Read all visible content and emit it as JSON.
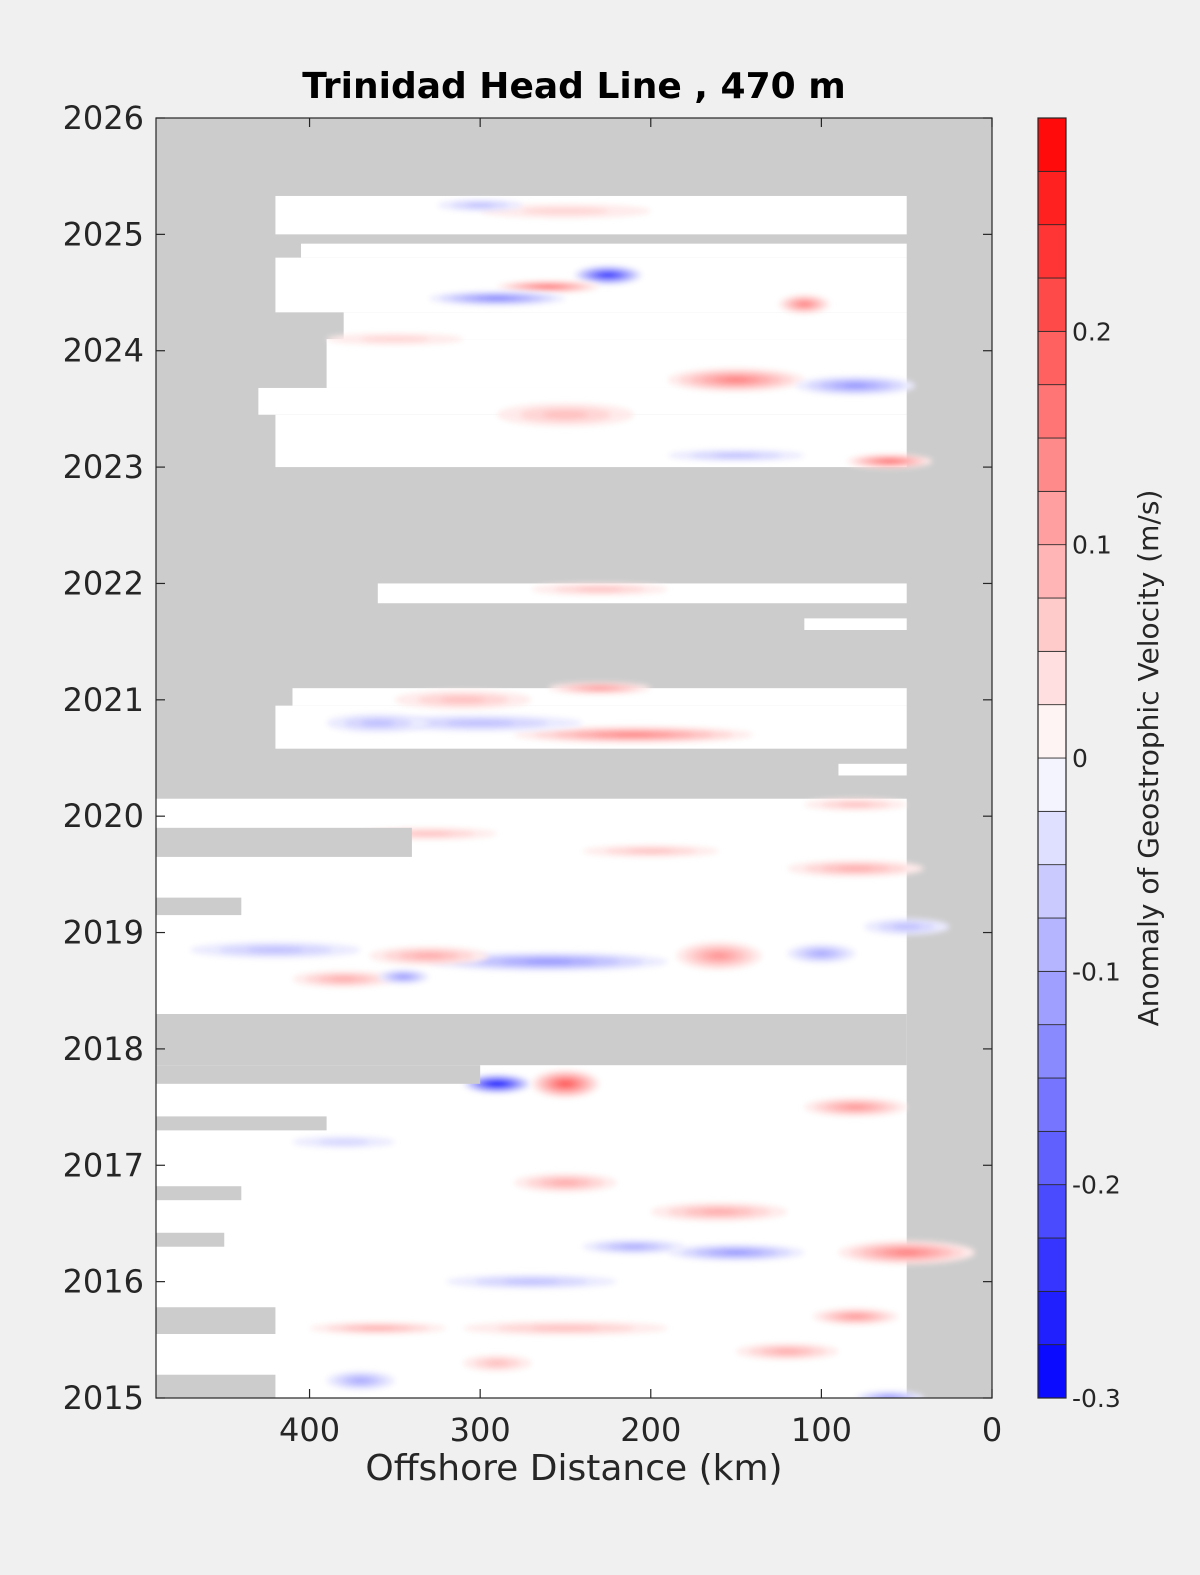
{
  "chart_data": {
    "type": "heatmap",
    "title": "Trinidad Head Line , 470 m",
    "xlabel": "Offshore Distance (km)",
    "ylabel": "",
    "x_reversed": true,
    "xlim": [
      490,
      0
    ],
    "ylim": [
      2015,
      2026
    ],
    "xticks": [
      400,
      300,
      200,
      100,
      0
    ],
    "yticks": [
      2015,
      2016,
      2017,
      2018,
      2019,
      2020,
      2021,
      2022,
      2023,
      2024,
      2025,
      2026
    ],
    "no_data_color": "#cccccc",
    "colorbar": {
      "label": "Anomaly of Geostrophic Velocity (m/s)",
      "range": [
        -0.3,
        0.3
      ],
      "ticks": [
        -0.3,
        -0.2,
        -0.1,
        0,
        0.1,
        0.2
      ],
      "tick_labels": [
        "-0.3",
        "-0.2",
        "-0.1",
        "0",
        "0.1",
        "0.2"
      ],
      "levels": [
        -0.3,
        -0.275,
        -0.25,
        -0.225,
        -0.2,
        -0.175,
        -0.15,
        -0.125,
        -0.1,
        -0.075,
        -0.05,
        -0.025,
        0,
        0.025,
        0.05,
        0.075,
        0.1,
        0.125,
        0.15,
        0.175,
        0.2,
        0.225,
        0.25,
        0.275,
        0.3
      ],
      "min_color": "#0000ff",
      "zero_color": "#ffffff",
      "max_color": "#ff0000"
    },
    "data_rows": [
      {
        "y0": 2025.0,
        "y1": 2025.33,
        "xmax": 420
      },
      {
        "y0": 2024.8,
        "y1": 2024.92,
        "xmax": 405
      },
      {
        "y0": 2024.33,
        "y1": 2024.8,
        "xmax": 420
      },
      {
        "y0": 2024.1,
        "y1": 2024.33,
        "xmax": 380
      },
      {
        "y0": 2023.68,
        "y1": 2024.1,
        "xmax": 390
      },
      {
        "y0": 2023.45,
        "y1": 2023.68,
        "xmax": 430
      },
      {
        "y0": 2023.0,
        "y1": 2023.45,
        "xmax": 420
      },
      {
        "y0": 2021.83,
        "y1": 2022.0,
        "xmax": 360
      },
      {
        "y0": 2021.6,
        "y1": 2021.7,
        "xmax": 110
      },
      {
        "y0": 2020.95,
        "y1": 2021.1,
        "xmax": 410
      },
      {
        "y0": 2020.58,
        "y1": 2020.95,
        "xmax": 420
      },
      {
        "y0": 2020.35,
        "y1": 2020.45,
        "xmax": 90
      },
      {
        "y0": 2015.0,
        "y1": 2020.15,
        "xmax": 490
      }
    ],
    "no_data_rows": [
      {
        "y0": 2019.65,
        "y1": 2019.9,
        "xmax": 490,
        "xmin": 340
      },
      {
        "y0": 2019.15,
        "y1": 2019.3,
        "xmax": 490,
        "xmin": 440
      },
      {
        "y0": 2017.86,
        "y1": 2018.3,
        "xmax": 490,
        "xmin": 50
      },
      {
        "y0": 2017.7,
        "y1": 2017.86,
        "xmax": 490,
        "xmin": 300
      },
      {
        "y0": 2017.3,
        "y1": 2017.42,
        "xmax": 490,
        "xmin": 390
      },
      {
        "y0": 2016.7,
        "y1": 2016.82,
        "xmax": 490,
        "xmin": 440
      },
      {
        "y0": 2016.3,
        "y1": 2016.42,
        "xmax": 490,
        "xmin": 450
      },
      {
        "y0": 2015.55,
        "y1": 2015.78,
        "xmax": 490,
        "xmin": 420
      },
      {
        "y0": 2015.0,
        "y1": 2015.2,
        "xmax": 490,
        "xmin": 420
      }
    ],
    "data_xmin": 50,
    "features": [
      {
        "x": 225,
        "y": 2024.65,
        "value": -0.26,
        "rx": 20,
        "ry": 0.08
      },
      {
        "x": 260,
        "y": 2024.55,
        "value": 0.18,
        "rx": 30,
        "ry": 0.05
      },
      {
        "x": 290,
        "y": 2024.45,
        "value": -0.14,
        "rx": 40,
        "ry": 0.06
      },
      {
        "x": 110,
        "y": 2024.4,
        "value": 0.15,
        "rx": 15,
        "ry": 0.08
      },
      {
        "x": 150,
        "y": 2023.75,
        "value": 0.14,
        "rx": 40,
        "ry": 0.1
      },
      {
        "x": 80,
        "y": 2023.7,
        "value": -0.12,
        "rx": 35,
        "ry": 0.08
      },
      {
        "x": 250,
        "y": 2023.45,
        "value": 0.08,
        "rx": 40,
        "ry": 0.1
      },
      {
        "x": 150,
        "y": 2023.1,
        "value": -0.08,
        "rx": 40,
        "ry": 0.05
      },
      {
        "x": 60,
        "y": 2023.05,
        "value": 0.18,
        "rx": 25,
        "ry": 0.06
      },
      {
        "x": 230,
        "y": 2021.1,
        "value": 0.12,
        "rx": 30,
        "ry": 0.05
      },
      {
        "x": 210,
        "y": 2020.7,
        "value": 0.14,
        "rx": 70,
        "ry": 0.07
      },
      {
        "x": 300,
        "y": 2020.8,
        "value": -0.08,
        "rx": 60,
        "ry": 0.07
      },
      {
        "x": 310,
        "y": 2021.0,
        "value": 0.08,
        "rx": 40,
        "ry": 0.08
      },
      {
        "x": 360,
        "y": 2020.8,
        "value": -0.08,
        "rx": 30,
        "ry": 0.08
      },
      {
        "x": 230,
        "y": 2021.95,
        "value": 0.08,
        "rx": 40,
        "ry": 0.05
      },
      {
        "x": 260,
        "y": 2018.75,
        "value": -0.12,
        "rx": 70,
        "ry": 0.08
      },
      {
        "x": 380,
        "y": 2018.6,
        "value": 0.1,
        "rx": 30,
        "ry": 0.07
      },
      {
        "x": 330,
        "y": 2018.8,
        "value": 0.09,
        "rx": 35,
        "ry": 0.08
      },
      {
        "x": 345,
        "y": 2018.62,
        "value": -0.12,
        "rx": 15,
        "ry": 0.06
      },
      {
        "x": 160,
        "y": 2018.8,
        "value": 0.12,
        "rx": 25,
        "ry": 0.12
      },
      {
        "x": 100,
        "y": 2018.82,
        "value": -0.09,
        "rx": 20,
        "ry": 0.08
      },
      {
        "x": 80,
        "y": 2019.55,
        "value": 0.1,
        "rx": 40,
        "ry": 0.07
      },
      {
        "x": 50,
        "y": 2019.05,
        "value": -0.08,
        "rx": 25,
        "ry": 0.07
      },
      {
        "x": 290,
        "y": 2017.7,
        "value": -0.3,
        "rx": 20,
        "ry": 0.08
      },
      {
        "x": 250,
        "y": 2017.7,
        "value": 0.2,
        "rx": 20,
        "ry": 0.12
      },
      {
        "x": 80,
        "y": 2017.5,
        "value": 0.12,
        "rx": 30,
        "ry": 0.08
      },
      {
        "x": 250,
        "y": 2016.85,
        "value": 0.1,
        "rx": 30,
        "ry": 0.08
      },
      {
        "x": 160,
        "y": 2016.6,
        "value": 0.1,
        "rx": 40,
        "ry": 0.08
      },
      {
        "x": 150,
        "y": 2016.25,
        "value": -0.12,
        "rx": 40,
        "ry": 0.07
      },
      {
        "x": 210,
        "y": 2016.3,
        "value": -0.1,
        "rx": 30,
        "ry": 0.06
      },
      {
        "x": 50,
        "y": 2016.25,
        "value": 0.14,
        "rx": 40,
        "ry": 0.1
      },
      {
        "x": 80,
        "y": 2015.7,
        "value": 0.12,
        "rx": 25,
        "ry": 0.07
      },
      {
        "x": 250,
        "y": 2015.6,
        "value": 0.08,
        "rx": 60,
        "ry": 0.06
      },
      {
        "x": 360,
        "y": 2015.6,
        "value": 0.09,
        "rx": 40,
        "ry": 0.05
      },
      {
        "x": 120,
        "y": 2015.4,
        "value": 0.1,
        "rx": 30,
        "ry": 0.07
      },
      {
        "x": 370,
        "y": 2015.15,
        "value": -0.1,
        "rx": 20,
        "ry": 0.08
      },
      {
        "x": 290,
        "y": 2015.3,
        "value": 0.08,
        "rx": 20,
        "ry": 0.07
      },
      {
        "x": 60,
        "y": 2015.0,
        "value": -0.12,
        "rx": 20,
        "ry": 0.06
      },
      {
        "x": 270,
        "y": 2016.0,
        "value": -0.08,
        "rx": 50,
        "ry": 0.06
      },
      {
        "x": 380,
        "y": 2017.2,
        "value": -0.06,
        "rx": 30,
        "ry": 0.05
      },
      {
        "x": 200,
        "y": 2019.7,
        "value": 0.07,
        "rx": 40,
        "ry": 0.05
      },
      {
        "x": 330,
        "y": 2019.85,
        "value": 0.07,
        "rx": 40,
        "ry": 0.05
      },
      {
        "x": 80,
        "y": 2020.1,
        "value": 0.07,
        "rx": 30,
        "ry": 0.05
      },
      {
        "x": 420,
        "y": 2018.85,
        "value": -0.07,
        "rx": 50,
        "ry": 0.07
      },
      {
        "x": 350,
        "y": 2024.1,
        "value": 0.06,
        "rx": 40,
        "ry": 0.05
      },
      {
        "x": 250,
        "y": 2025.2,
        "value": 0.05,
        "rx": 50,
        "ry": 0.06
      },
      {
        "x": 300,
        "y": 2025.25,
        "value": -0.08,
        "rx": 25,
        "ry": 0.05
      }
    ]
  }
}
